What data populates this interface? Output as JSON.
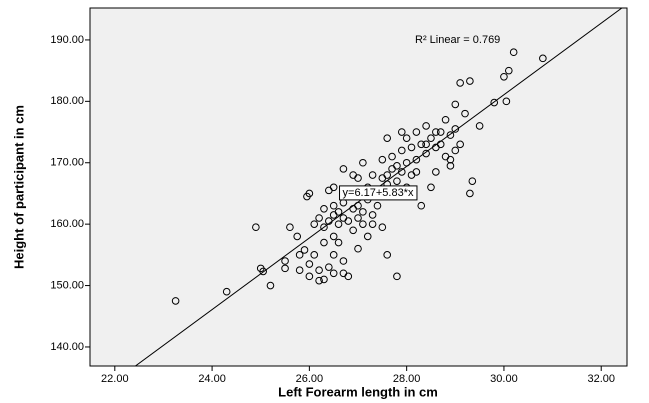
{
  "chart_data": {
    "type": "scatter",
    "x_label": "Left Forearm length in cm",
    "y_label": "Height of participant in cm",
    "xlim": [
      21.49,
      32.53
    ],
    "ylim": [
      136.9,
      195.2
    ],
    "xticks": [
      {
        "value": 22,
        "label": "22.00"
      },
      {
        "value": 24,
        "label": "24.00"
      },
      {
        "value": 26,
        "label": "26.00"
      },
      {
        "value": 28,
        "label": "28.00"
      },
      {
        "value": 30,
        "label": "30.00"
      },
      {
        "value": 32,
        "label": "32.00"
      }
    ],
    "yticks": [
      {
        "value": 140,
        "label": "140.00"
      },
      {
        "value": 150,
        "label": "150.00"
      },
      {
        "value": 160,
        "label": "160.00"
      },
      {
        "value": 170,
        "label": "170.00"
      },
      {
        "value": 180,
        "label": "180.00"
      },
      {
        "value": 190,
        "label": "190.00"
      }
    ],
    "background": "#f0f0f0",
    "series": [
      {
        "color": "#000000",
        "x": [
          23.25,
          24.3,
          24.9,
          25.0,
          25.05,
          25.2,
          25.5,
          25.5,
          25.6,
          25.75,
          25.8,
          25.9,
          25.8,
          26.0,
          26.0,
          26.0,
          25.95,
          26.1,
          26.2,
          26.2,
          26.3,
          26.3,
          26.4,
          26.5,
          26.5,
          26.5,
          26.6,
          26.7,
          26.7,
          26.8,
          26.4,
          26.1,
          26.2,
          26.3,
          26.3,
          26.4,
          26.5,
          26.5,
          26.6,
          26.6,
          26.7,
          26.7,
          26.8,
          26.8,
          26.9,
          26.9,
          27.0,
          27.0,
          27.1,
          27.1,
          27.2,
          27.2,
          27.3,
          27.3,
          27.4,
          27.4,
          27.5,
          27.5,
          27.6,
          27.6,
          27.7,
          27.7,
          27.8,
          27.8,
          27.9,
          27.9,
          28.0,
          28.0,
          28.1,
          28.1,
          28.2,
          28.2,
          28.3,
          28.3,
          28.4,
          28.4,
          28.5,
          28.5,
          28.6,
          28.6,
          28.7,
          28.7,
          28.8,
          28.8,
          28.9,
          28.9,
          29.0,
          29.0,
          29.1,
          29.1,
          29.2,
          29.3,
          29.3,
          29.35,
          29.5,
          29.8,
          30.0,
          30.1,
          30.05,
          30.2,
          30.8,
          27.6,
          27.8,
          26.9,
          26.7,
          27.0,
          27.2,
          27.0,
          27.5,
          27.3,
          28.6,
          29.0,
          28.4,
          27.9,
          27.6,
          28.0,
          28.2,
          26.5,
          27.1,
          28.9
        ],
        "values": [
          147.5,
          149.0,
          159.5,
          152.8,
          152.3,
          150.0,
          152.8,
          154.0,
          159.5,
          158.0,
          155.0,
          155.8,
          152.5,
          153.5,
          151.5,
          165.0,
          164.5,
          155.0,
          152.5,
          150.8,
          151.0,
          157.0,
          153.0,
          152.0,
          155.0,
          158.0,
          157.0,
          154.0,
          152.0,
          151.5,
          165.5,
          160.0,
          161.0,
          162.5,
          159.5,
          160.5,
          161.5,
          163.0,
          160.0,
          162.0,
          163.5,
          161.0,
          160.5,
          164.5,
          162.5,
          159.0,
          161.0,
          163.0,
          160.0,
          162.0,
          164.0,
          166.0,
          161.5,
          168.0,
          163.0,
          165.5,
          167.5,
          170.5,
          168.0,
          166.5,
          169.0,
          171.0,
          167.0,
          169.5,
          168.5,
          172.0,
          170.0,
          174.0,
          172.5,
          168.0,
          170.5,
          175.0,
          173.0,
          163.0,
          171.5,
          176.0,
          174.0,
          166.0,
          172.5,
          168.5,
          175.0,
          173.0,
          171.0,
          177.0,
          174.5,
          170.5,
          175.5,
          179.5,
          173.0,
          183.0,
          178.0,
          183.3,
          165.0,
          167.0,
          176.0,
          179.8,
          184.0,
          185.0,
          180.0,
          188.0,
          187.0,
          155.0,
          151.5,
          168.0,
          169.0,
          167.5,
          158.0,
          156.0,
          159.5,
          160.0,
          175.0,
          172.0,
          173.0,
          175.0,
          174.0,
          166.0,
          168.5,
          166.0,
          170.0,
          169.5
        ]
      }
    ],
    "fit": {
      "intercept": 6.17,
      "slope": 5.83,
      "color": "#000000",
      "label": "y=6.17+5.83*x"
    },
    "r2_label": "R² Linear = 0.769"
  }
}
